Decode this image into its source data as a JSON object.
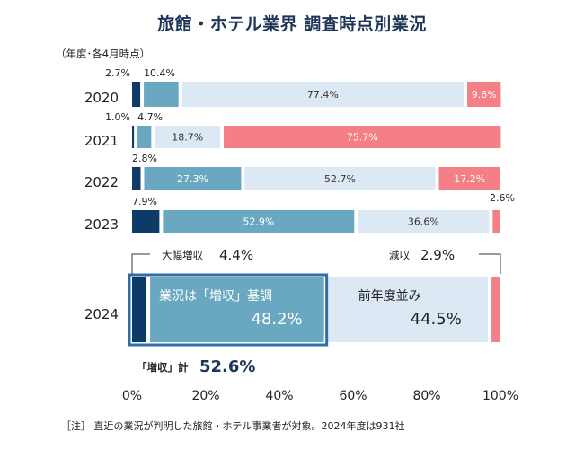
{
  "title": "旅館・ホテル業界  調査時点別業況",
  "period_note": "（年度･各4月時点）",
  "footnote": "［注］ 直近の業況が判明した旅館・ホテル事業者が対象。2024年度は931社",
  "colors": {
    "big_increase": "#0d3a66",
    "increase": "#6aa8c2",
    "flat": "#dce9f5",
    "decrease": "#f47f86",
    "frame": "#2e6fa8"
  },
  "chart_data": {
    "type": "bar",
    "orientation": "horizontal",
    "stacked": true,
    "categories": [
      "2020",
      "2021",
      "2022",
      "2023",
      "2024"
    ],
    "series": [
      {
        "key": "big_increase",
        "values": [
          2.7,
          1.0,
          2.8,
          7.9,
          4.4
        ],
        "labels": [
          "2.7%",
          "1.0%",
          "2.8%",
          "7.9%",
          ""
        ]
      },
      {
        "key": "increase",
        "values": [
          10.4,
          4.7,
          27.3,
          52.9,
          48.2
        ],
        "labels": [
          "10.4%",
          "4.7%",
          "27.3%",
          "52.9%",
          ""
        ]
      },
      {
        "key": "flat",
        "values": [
          77.4,
          18.7,
          52.7,
          36.6,
          44.5
        ],
        "labels": [
          "77.4%",
          "18.7%",
          "52.7%",
          "36.6%",
          ""
        ]
      },
      {
        "key": "decrease",
        "values": [
          9.6,
          75.7,
          17.2,
          2.6,
          2.9
        ],
        "labels": [
          "9.6%",
          "75.7%",
          "17.2%",
          "2.6%",
          ""
        ]
      }
    ],
    "xlim": [
      0,
      100
    ],
    "x_ticks": [
      "0%",
      "20%",
      "40%",
      "60%",
      "80%",
      "100%"
    ],
    "callouts": {
      "big_increase_label": "大幅増収",
      "big_increase_value": "4.4%",
      "decrease_label": "減収",
      "decrease_value": "2.9%",
      "increase_label": "業況は「増収」基調",
      "increase_value": "48.2%",
      "flat_label": "前年度並み",
      "flat_value": "44.5%",
      "total_label": "「増収」計",
      "total_value": "52.6%"
    }
  }
}
